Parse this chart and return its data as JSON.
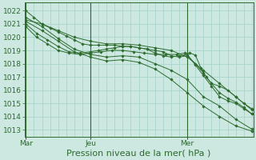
{
  "title": "",
  "xlabel": "Pression niveau de la mer( hPa )",
  "ylabel": "",
  "bg_color": "#cce8e0",
  "grid_color": "#a8d4cc",
  "line_color": "#2d6b2d",
  "xtick_labels": [
    "Mar",
    "Jeu",
    "Mer"
  ],
  "xtick_positions": [
    0,
    48,
    120
  ],
  "ylim": [
    1012.5,
    1022.6
  ],
  "xlim": [
    -1,
    169
  ],
  "yticks": [
    1013,
    1014,
    1015,
    1016,
    1017,
    1018,
    1019,
    1020,
    1021,
    1022
  ],
  "lines": [
    {
      "x": [
        0,
        6,
        12,
        18,
        24,
        30,
        36,
        42,
        48,
        54,
        60,
        66,
        72,
        78,
        84,
        90,
        96,
        102,
        108,
        114,
        120,
        126,
        132,
        138,
        144,
        150,
        156,
        162,
        168
      ],
      "y": [
        1022.0,
        1021.5,
        1021.0,
        1020.7,
        1020.4,
        1020.1,
        1019.8,
        1019.5,
        1019.4,
        1019.4,
        1019.4,
        1019.4,
        1019.3,
        1019.3,
        1019.2,
        1019.1,
        1019.0,
        1018.9,
        1018.6,
        1018.5,
        1018.6,
        1018.0,
        1017.3,
        1016.5,
        1015.8,
        1015.4,
        1015.1,
        1014.7,
        1014.2
      ]
    },
    {
      "x": [
        0,
        12,
        24,
        36,
        48,
        60,
        72,
        84,
        96,
        108,
        120,
        132,
        144,
        156,
        168
      ],
      "y": [
        1021.3,
        1021.0,
        1020.5,
        1020.0,
        1019.7,
        1019.5,
        1019.5,
        1019.4,
        1019.2,
        1019.0,
        1018.5,
        1017.5,
        1016.5,
        1015.5,
        1014.5
      ]
    },
    {
      "x": [
        0,
        8,
        16,
        24,
        32,
        40,
        48,
        54,
        60,
        66,
        72,
        78,
        84,
        90,
        96,
        102,
        108,
        114,
        120,
        126,
        132,
        138,
        144,
        150,
        156,
        162,
        168
      ],
      "y": [
        1021.0,
        1020.3,
        1019.8,
        1019.3,
        1018.9,
        1018.8,
        1018.9,
        1019.0,
        1019.1,
        1019.2,
        1019.3,
        1019.3,
        1019.2,
        1019.1,
        1018.8,
        1018.6,
        1018.5,
        1018.6,
        1018.7,
        1017.9,
        1017.1,
        1016.3,
        1015.5,
        1015.2,
        1015.0,
        1014.6,
        1014.2
      ]
    },
    {
      "x": [
        0,
        8,
        16,
        24,
        32,
        40,
        48,
        56,
        64,
        72,
        80,
        88,
        96,
        104,
        112,
        118,
        122,
        126,
        130,
        134,
        138,
        144,
        150,
        156,
        162,
        168
      ],
      "y": [
        1020.8,
        1020.0,
        1019.5,
        1019.0,
        1018.8,
        1018.7,
        1018.8,
        1018.9,
        1019.0,
        1019.0,
        1018.9,
        1018.8,
        1018.7,
        1018.7,
        1018.7,
        1018.8,
        1018.8,
        1018.65,
        1017.7,
        1017.0,
        1016.5,
        1016.3,
        1016.0,
        1015.5,
        1015.0,
        1014.6
      ]
    },
    {
      "x": [
        0,
        12,
        24,
        36,
        48,
        60,
        72,
        84,
        96,
        108,
        120,
        132,
        144,
        156,
        168
      ],
      "y": [
        1021.5,
        1020.8,
        1019.9,
        1019.1,
        1018.7,
        1018.5,
        1018.6,
        1018.5,
        1018.0,
        1017.5,
        1016.8,
        1015.5,
        1014.8,
        1013.8,
        1013.05
      ]
    },
    {
      "x": [
        0,
        12,
        24,
        36,
        48,
        60,
        72,
        84,
        96,
        108,
        120,
        132,
        144,
        156,
        168
      ],
      "y": [
        1021.2,
        1020.5,
        1019.7,
        1018.9,
        1018.5,
        1018.2,
        1018.3,
        1018.1,
        1017.6,
        1016.8,
        1015.8,
        1014.8,
        1014.0,
        1013.3,
        1012.9
      ]
    }
  ],
  "vlines_x": [
    0,
    48,
    120
  ],
  "xlabel_fontsize": 8,
  "tick_fontsize": 6.5
}
